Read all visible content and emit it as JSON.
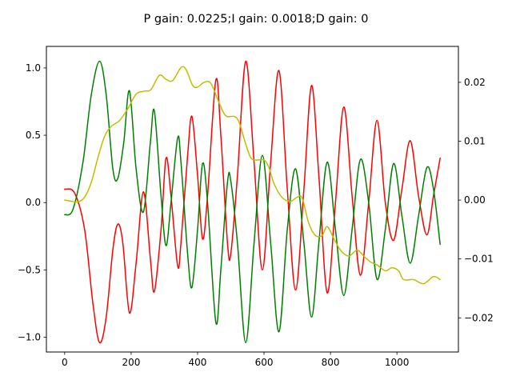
{
  "chart_data": {
    "type": "line",
    "title": "P gain: 0.0225;I gain: 0.0018;D gain: 0",
    "xlabel": "",
    "ylabel": "",
    "y2label": "",
    "xlim": [
      -55,
      1185
    ],
    "ylim": [
      -1.11,
      1.16
    ],
    "y2lim": [
      -0.0258,
      0.0261
    ],
    "x_ticks": [
      0,
      200,
      400,
      600,
      800,
      1000
    ],
    "y_ticks": [
      -1.0,
      -0.5,
      0.0,
      0.5,
      1.0
    ],
    "y_tick_labels": [
      "−1.0",
      "−0.5",
      "0.0",
      "0.5",
      "1.0"
    ],
    "y2_ticks": [
      -0.02,
      -0.01,
      0.0,
      0.01,
      0.02
    ],
    "y2_tick_labels": [
      "−0.02",
      "−0.01",
      "0.00",
      "0.01",
      "0.02"
    ],
    "grid": false,
    "legend": "none",
    "series": [
      {
        "axis": "left",
        "color": "#ff0000",
        "points": [
          [
            0,
            0.1
          ],
          [
            30,
            0.07
          ],
          [
            60,
            -0.2
          ],
          [
            85,
            -0.75
          ],
          [
            105,
            -1.04
          ],
          [
            125,
            -0.85
          ],
          [
            145,
            -0.35
          ],
          [
            160,
            -0.16
          ],
          [
            175,
            -0.3
          ],
          [
            195,
            -0.82
          ],
          [
            215,
            -0.45
          ],
          [
            237,
            0.08
          ],
          [
            258,
            -0.42
          ],
          [
            270,
            -0.66
          ],
          [
            290,
            -0.2
          ],
          [
            305,
            0.33
          ],
          [
            320,
            0.05
          ],
          [
            340,
            -0.47
          ],
          [
            350,
            -0.3
          ],
          [
            370,
            0.35
          ],
          [
            383,
            0.64
          ],
          [
            400,
            0.2
          ],
          [
            415,
            -0.27
          ],
          [
            430,
            0.05
          ],
          [
            455,
            0.91
          ],
          [
            470,
            0.5
          ],
          [
            490,
            -0.3
          ],
          [
            500,
            -0.38
          ],
          [
            520,
            0.2
          ],
          [
            545,
            1.05
          ],
          [
            570,
            0.3
          ],
          [
            595,
            -0.5
          ],
          [
            620,
            0.3
          ],
          [
            645,
            0.98
          ],
          [
            670,
            0.1
          ],
          [
            695,
            -0.65
          ],
          [
            720,
            0.1
          ],
          [
            743,
            0.87
          ],
          [
            765,
            0.2
          ],
          [
            790,
            -0.67
          ],
          [
            815,
            0.0
          ],
          [
            840,
            0.71
          ],
          [
            865,
            0.05
          ],
          [
            890,
            -0.54
          ],
          [
            915,
            0.0
          ],
          [
            940,
            0.61
          ],
          [
            965,
            0.0
          ],
          [
            990,
            -0.28
          ],
          [
            1015,
            0.1
          ],
          [
            1040,
            0.46
          ],
          [
            1065,
            0.05
          ],
          [
            1090,
            -0.24
          ],
          [
            1110,
            0.05
          ],
          [
            1130,
            0.33
          ]
        ]
      },
      {
        "axis": "left",
        "color": "#008000",
        "points": [
          [
            0,
            -0.09
          ],
          [
            25,
            -0.05
          ],
          [
            55,
            0.3
          ],
          [
            80,
            0.8
          ],
          [
            105,
            1.05
          ],
          [
            125,
            0.8
          ],
          [
            145,
            0.25
          ],
          [
            160,
            0.18
          ],
          [
            178,
            0.45
          ],
          [
            195,
            0.83
          ],
          [
            215,
            0.25
          ],
          [
            237,
            -0.07
          ],
          [
            258,
            0.45
          ],
          [
            270,
            0.68
          ],
          [
            290,
            0.05
          ],
          [
            305,
            -0.32
          ],
          [
            320,
            0.0
          ],
          [
            340,
            0.48
          ],
          [
            350,
            0.3
          ],
          [
            370,
            -0.38
          ],
          [
            383,
            -0.63
          ],
          [
            400,
            -0.2
          ],
          [
            415,
            0.29
          ],
          [
            430,
            0.0
          ],
          [
            455,
            -0.89
          ],
          [
            470,
            -0.5
          ],
          [
            490,
            0.15
          ],
          [
            500,
            0.16
          ],
          [
            520,
            -0.3
          ],
          [
            545,
            -1.04
          ],
          [
            570,
            -0.3
          ],
          [
            595,
            0.35
          ],
          [
            620,
            -0.3
          ],
          [
            645,
            -0.96
          ],
          [
            670,
            -0.2
          ],
          [
            695,
            0.25
          ],
          [
            720,
            -0.3
          ],
          [
            743,
            -0.85
          ],
          [
            765,
            -0.3
          ],
          [
            790,
            0.3
          ],
          [
            815,
            -0.2
          ],
          [
            840,
            -0.69
          ],
          [
            865,
            -0.2
          ],
          [
            890,
            0.32
          ],
          [
            915,
            0.0
          ],
          [
            940,
            -0.57
          ],
          [
            965,
            -0.2
          ],
          [
            990,
            0.29
          ],
          [
            1015,
            -0.1
          ],
          [
            1040,
            -0.45
          ],
          [
            1065,
            -0.1
          ],
          [
            1090,
            0.26
          ],
          [
            1110,
            0.1
          ],
          [
            1130,
            -0.31
          ]
        ]
      },
      {
        "axis": "right",
        "color": "#bfbf00",
        "points": [
          [
            0,
            0.0
          ],
          [
            20,
            -0.0002
          ],
          [
            40,
            -0.0003
          ],
          [
            60,
            0.0005
          ],
          [
            80,
            0.003
          ],
          [
            100,
            0.0072
          ],
          [
            120,
            0.0108
          ],
          [
            140,
            0.0125
          ],
          [
            165,
            0.0135
          ],
          [
            190,
            0.0155
          ],
          [
            215,
            0.018
          ],
          [
            240,
            0.0185
          ],
          [
            260,
            0.0188
          ],
          [
            285,
            0.0212
          ],
          [
            305,
            0.0205
          ],
          [
            325,
            0.0203
          ],
          [
            350,
            0.0225
          ],
          [
            365,
            0.0222
          ],
          [
            385,
            0.0195
          ],
          [
            400,
            0.0192
          ],
          [
            420,
            0.02
          ],
          [
            440,
            0.0198
          ],
          [
            465,
            0.0165
          ],
          [
            485,
            0.0143
          ],
          [
            510,
            0.0142
          ],
          [
            525,
            0.0132
          ],
          [
            545,
            0.0095
          ],
          [
            560,
            0.0072
          ],
          [
            575,
            0.0068
          ],
          [
            600,
            0.0068
          ],
          [
            615,
            0.0055
          ],
          [
            630,
            0.0028
          ],
          [
            655,
            0.0004
          ],
          [
            680,
            -0.0002
          ],
          [
            700,
            0.0005
          ],
          [
            715,
            0.0003
          ],
          [
            735,
            -0.004
          ],
          [
            755,
            -0.006
          ],
          [
            775,
            -0.006
          ],
          [
            790,
            -0.0045
          ],
          [
            810,
            -0.0065
          ],
          [
            830,
            -0.0085
          ],
          [
            855,
            -0.0095
          ],
          [
            880,
            -0.0085
          ],
          [
            900,
            -0.0095
          ],
          [
            920,
            -0.0105
          ],
          [
            940,
            -0.011
          ],
          [
            965,
            -0.012
          ],
          [
            985,
            -0.0115
          ],
          [
            1005,
            -0.012
          ],
          [
            1020,
            -0.0135
          ],
          [
            1050,
            -0.0135
          ],
          [
            1080,
            -0.0142
          ],
          [
            1110,
            -0.013
          ],
          [
            1130,
            -0.0135
          ]
        ]
      }
    ]
  }
}
